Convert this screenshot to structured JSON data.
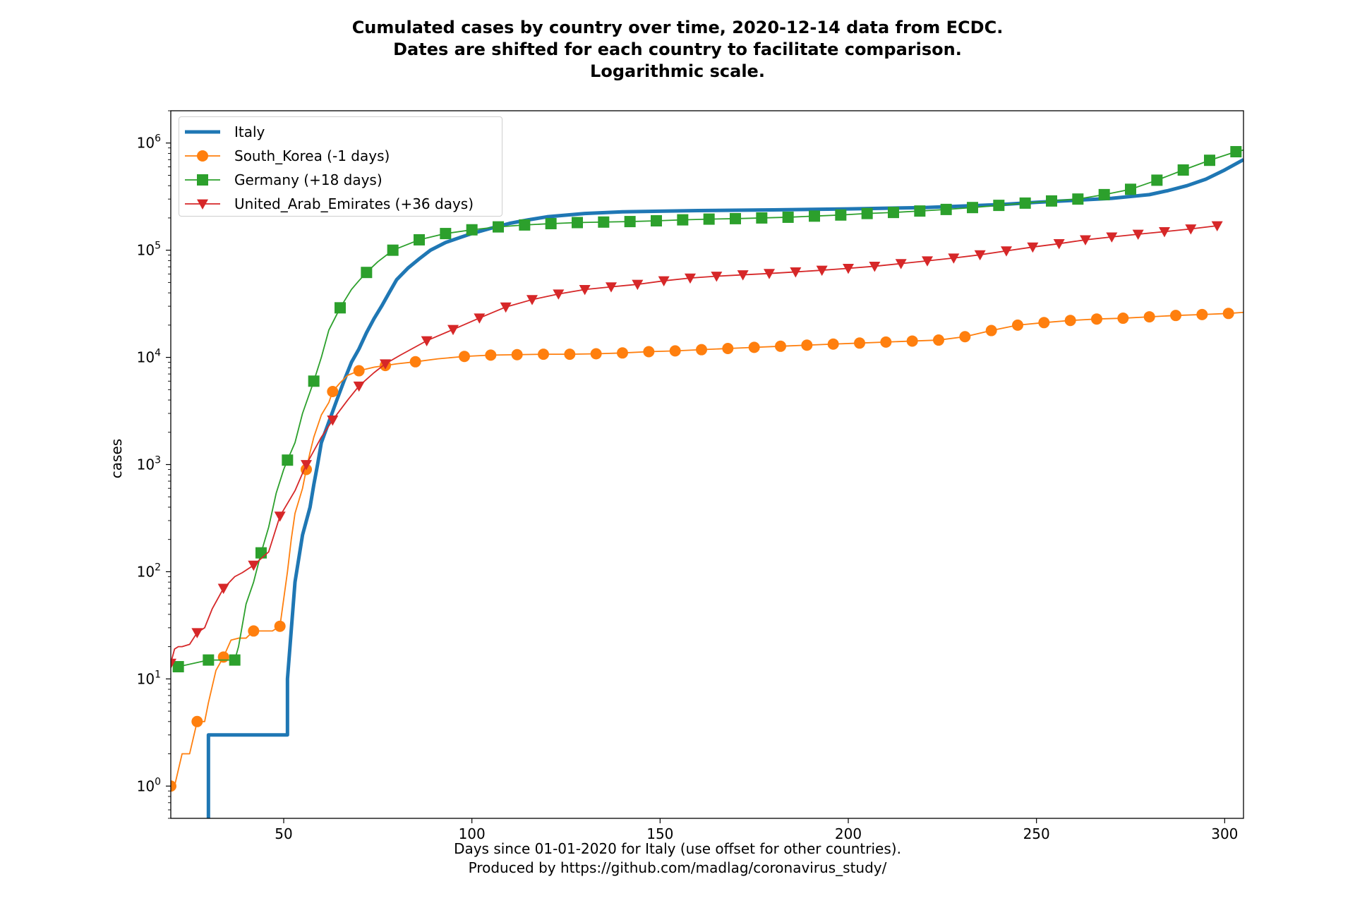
{
  "title_lines": [
    "Cumulated cases by country over time, 2020-12-14 data from ECDC.",
    "Dates are shifted for each country to facilitate comparison.",
    "Logarithmic scale."
  ],
  "xlabel_lines": [
    "Days since 01-01-2020 for Italy (use offset for other countries).",
    "Produced by https://github.com/madlag/coronavirus_study/"
  ],
  "ylabel": "cases",
  "legend": {
    "placement": "top-left",
    "items": [
      {
        "label": "Italy",
        "color": "#1f77b4",
        "marker": "none"
      },
      {
        "label": "South_Korea (-1 days)",
        "color": "#ff7f0e",
        "marker": "circle"
      },
      {
        "label": "Germany (+18 days)",
        "color": "#2ca02c",
        "marker": "square"
      },
      {
        "label": "United_Arab_Emirates (+36 days)",
        "color": "#d62728",
        "marker": "triangle-down"
      }
    ]
  },
  "chart_data": {
    "type": "line",
    "title": "Cumulated cases by country over time, 2020-12-14 data from ECDC. Dates are shifted for each country to facilitate comparison. Logarithmic scale.",
    "xlabel": "Days since 01-01-2020 for Italy (use offset for other countries). Produced by https://github.com/madlag/coronavirus_study/",
    "ylabel": "cases",
    "y_scale": "log",
    "xlim": [
      20,
      305
    ],
    "ylim": [
      0.5,
      2000000
    ],
    "x_ticks": [
      50,
      100,
      150,
      200,
      250,
      300
    ],
    "y_ticks": [
      {
        "value": 1,
        "base": "10",
        "exp": "0"
      },
      {
        "value": 10,
        "base": "10",
        "exp": "1"
      },
      {
        "value": 100,
        "base": "10",
        "exp": "2"
      },
      {
        "value": 1000,
        "base": "10",
        "exp": "3"
      },
      {
        "value": 10000,
        "base": "10",
        "exp": "4"
      },
      {
        "value": 100000,
        "base": "10",
        "exp": "5"
      },
      {
        "value": 1000000,
        "base": "10",
        "exp": "6"
      }
    ],
    "grid": false,
    "series": [
      {
        "name": "Italy",
        "color": "#1f77b4",
        "marker": "none",
        "x": [
          30,
          30,
          51,
          51,
          53,
          55,
          57,
          58,
          59,
          60,
          62,
          64,
          66,
          68,
          70,
          72,
          74,
          76,
          78,
          80,
          83,
          86,
          89,
          93,
          97,
          100,
          105,
          110,
          115,
          120,
          130,
          140,
          160,
          180,
          200,
          220,
          240,
          250,
          260,
          270,
          280,
          285,
          290,
          295,
          300,
          305
        ],
        "y": [
          0.5,
          3,
          3,
          10,
          80,
          220,
          400,
          650,
          1000,
          1600,
          2500,
          3900,
          6000,
          9000,
          12000,
          17000,
          23000,
          30000,
          40000,
          53000,
          68000,
          83000,
          100000,
          118000,
          132000,
          143000,
          160000,
          178000,
          192000,
          205000,
          220000,
          228000,
          234000,
          238000,
          243000,
          250000,
          266000,
          280000,
          292000,
          305000,
          330000,
          360000,
          400000,
          460000,
          560000,
          700000
        ]
      },
      {
        "name": "South_Korea (-1 days)",
        "color": "#ff7f0e",
        "marker": "circle",
        "x": [
          20,
          21,
          23,
          25,
          27,
          29,
          30,
          32,
          34,
          36,
          38,
          40,
          42,
          45,
          47,
          49,
          51,
          52,
          53,
          55,
          56,
          57,
          58,
          60,
          62,
          63,
          65,
          67,
          70,
          74,
          77,
          80,
          85,
          91,
          98,
          105,
          112,
          119,
          126,
          133,
          140,
          147,
          154,
          161,
          168,
          175,
          182,
          189,
          196,
          203,
          210,
          217,
          224,
          231,
          238,
          245,
          252,
          259,
          266,
          273,
          280,
          287,
          294,
          301,
          305
        ],
        "y": [
          1,
          1,
          2,
          2,
          4,
          4,
          6,
          12,
          16,
          23,
          24,
          24,
          28,
          28,
          28,
          31,
          100,
          200,
          350,
          600,
          900,
          1300,
          1800,
          2900,
          3800,
          4800,
          5800,
          6800,
          7500,
          8100,
          8400,
          8700,
          9100,
          9700,
          10200,
          10500,
          10600,
          10700,
          10700,
          10800,
          11000,
          11300,
          11500,
          11800,
          12100,
          12400,
          12700,
          13000,
          13300,
          13600,
          13900,
          14200,
          14500,
          15600,
          17800,
          20000,
          21100,
          22100,
          22800,
          23200,
          23900,
          24600,
          25100,
          25700,
          26300
        ]
      },
      {
        "name": "Germany (+18 days)",
        "color": "#2ca02c",
        "marker": "square",
        "x": [
          22,
          30,
          37,
          38,
          40,
          42,
          44,
          46,
          48,
          50,
          51,
          53,
          55,
          58,
          60,
          62,
          65,
          68,
          70,
          72,
          75,
          79,
          86,
          93,
          100,
          107,
          114,
          121,
          128,
          135,
          142,
          149,
          156,
          163,
          170,
          177,
          184,
          191,
          198,
          205,
          212,
          219,
          226,
          233,
          240,
          247,
          254,
          261,
          268,
          275,
          282,
          289,
          296,
          303,
          305
        ],
        "y": [
          13,
          15,
          15,
          20,
          50,
          80,
          150,
          260,
          540,
          900,
          1100,
          1600,
          3000,
          6000,
          10000,
          18000,
          29000,
          43000,
          52000,
          62000,
          78000,
          100000,
          125000,
          143000,
          155000,
          165000,
          172000,
          177000,
          181000,
          183000,
          185000,
          188000,
          192000,
          195000,
          197000,
          200000,
          203000,
          208000,
          213000,
          220000,
          225000,
          232000,
          240000,
          250000,
          262000,
          275000,
          288000,
          300000,
          330000,
          370000,
          450000,
          560000,
          690000,
          830000,
          860000
        ]
      },
      {
        "name": "United_Arab_Emirates (+36 days)",
        "color": "#d62728",
        "marker": "triangle-down",
        "x": [
          20,
          21,
          22,
          23,
          25,
          27,
          29,
          31,
          34,
          37,
          39,
          42,
          46,
          49,
          53,
          56,
          60,
          63,
          67,
          70,
          74,
          77,
          81,
          88,
          95,
          102,
          109,
          116,
          123,
          130,
          137,
          144,
          151,
          158,
          165,
          172,
          179,
          186,
          193,
          200,
          207,
          214,
          221,
          228,
          235,
          242,
          249,
          256,
          263,
          270,
          277,
          284,
          291,
          298
        ],
        "y": [
          14,
          19,
          20,
          20,
          21,
          27,
          30,
          45,
          70,
          90,
          98,
          115,
          153,
          330,
          570,
          1000,
          1800,
          2600,
          4000,
          5400,
          7200,
          8700,
          10500,
          14300,
          18200,
          23300,
          29500,
          34600,
          39000,
          43000,
          45500,
          48000,
          51800,
          55000,
          57200,
          58900,
          60600,
          62700,
          65000,
          67700,
          70800,
          75000,
          79500,
          84500,
          90600,
          98500,
          107000,
          115000,
          125000,
          133000,
          141000,
          149000,
          158000,
          169000
        ]
      }
    ]
  }
}
